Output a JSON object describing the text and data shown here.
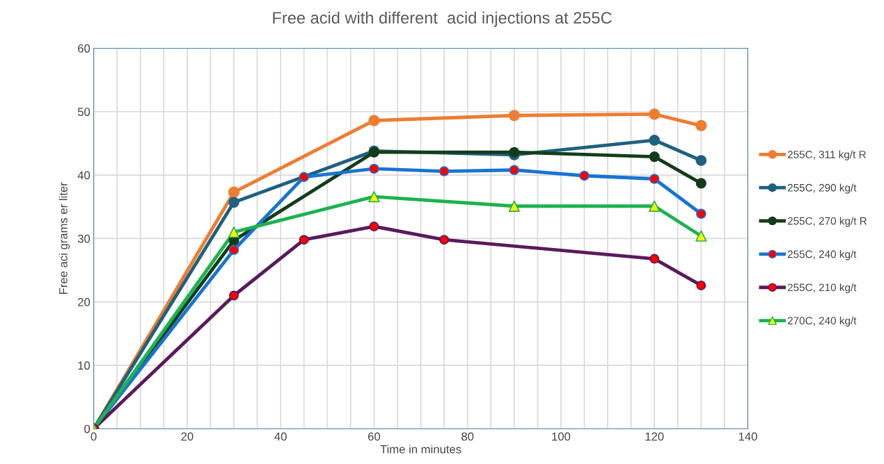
{
  "chart_data": {
    "type": "line",
    "title": "Free acid with different  acid injections at 255C",
    "xlabel": "Time in minutes",
    "ylabel": "Free aci grams er liter",
    "xlim": [
      0,
      140
    ],
    "ylim": [
      0,
      60
    ],
    "xticks": [
      0,
      {
        "value": 5,
        "label": null
      },
      {
        "value": 10,
        "label": null
      },
      {
        "value": 15,
        "label": null
      },
      20,
      {
        "value": 25,
        "label": null
      },
      {
        "value": 30,
        "label": null
      },
      {
        "value": 35,
        "label": null
      },
      40,
      {
        "value": 45,
        "label": null
      },
      {
        "value": 50,
        "label": null
      },
      {
        "value": 55,
        "label": null
      },
      60,
      {
        "value": 65,
        "label": null
      },
      {
        "value": 70,
        "label": null
      },
      {
        "value": 75,
        "label": null
      },
      80,
      {
        "value": 85,
        "label": null
      },
      {
        "value": 90,
        "label": null
      },
      {
        "value": 95,
        "label": null
      },
      100,
      {
        "value": 105,
        "label": null
      },
      {
        "value": 110,
        "label": null
      },
      {
        "value": 115,
        "label": null
      },
      120,
      {
        "value": 125,
        "label": null
      },
      {
        "value": 130,
        "label": null
      },
      {
        "value": 135,
        "label": null
      },
      140
    ],
    "yticks": [
      0,
      10,
      20,
      30,
      40,
      50,
      60
    ],
    "grid": true,
    "legend": "right",
    "marker": "circle",
    "line_style": "solid",
    "series": [
      {
        "name": "255C, 311 kg/t R",
        "color": "#ed7d31",
        "x": [
          0,
          30,
          60,
          90,
          120,
          130
        ],
        "values": [
          0,
          37.3,
          48.6,
          49.4,
          49.6,
          47.8
        ]
      },
      {
        "name": "255C, 290 kg/t",
        "color": "#1f6080",
        "x": [
          0,
          30,
          60,
          90,
          120,
          130
        ],
        "values": [
          0,
          35.7,
          43.8,
          43.2,
          45.5,
          42.3
        ]
      },
      {
        "name": "255C, 270 kg/t R",
        "color": "#133d1a",
        "x": [
          0,
          30,
          60,
          90,
          120,
          130
        ],
        "values": [
          0,
          29.7,
          43.6,
          43.6,
          42.9,
          38.7
        ]
      },
      {
        "name": "255C, 240 kg/t",
        "color": "#1874d2",
        "colors": [
          "#ff0000",
          "#ff0000",
          "#ff0000",
          "#ff0000",
          "#ff0000",
          "#ff0000",
          "#ff0000",
          "#ff0000",
          "#ff0000"
        ],
        "x": [
          0,
          30,
          45,
          60,
          75,
          90,
          105,
          120,
          130
        ],
        "values": [
          0,
          28.2,
          39.7,
          41.0,
          40.6,
          40.8,
          39.9,
          39.4,
          33.9
        ]
      },
      {
        "name": "255C, 210 kg/t",
        "color": "#5a1a5c",
        "colors": [
          "#ff0000",
          "#ff0000",
          "#ff0000",
          "#ff0000",
          "#ff0000",
          "#ff0000",
          "#ff0000"
        ],
        "x": [
          0,
          30,
          45,
          60,
          75,
          120,
          130
        ],
        "values": [
          0,
          21.0,
          29.8,
          31.9,
          29.8,
          26.8,
          22.6
        ]
      },
      {
        "name": "270C, 240 kg/t",
        "color": "#1db24f",
        "marker": "triangle",
        "colors": [
          "#ffff00",
          "#ffff00",
          "#ffff00",
          "#ffff00",
          "#ffff00",
          "#ffff00"
        ],
        "x": [
          0,
          30,
          60,
          90,
          120,
          130
        ],
        "values": [
          0,
          31.0,
          36.6,
          35.1,
          35.1,
          30.4
        ]
      }
    ]
  }
}
